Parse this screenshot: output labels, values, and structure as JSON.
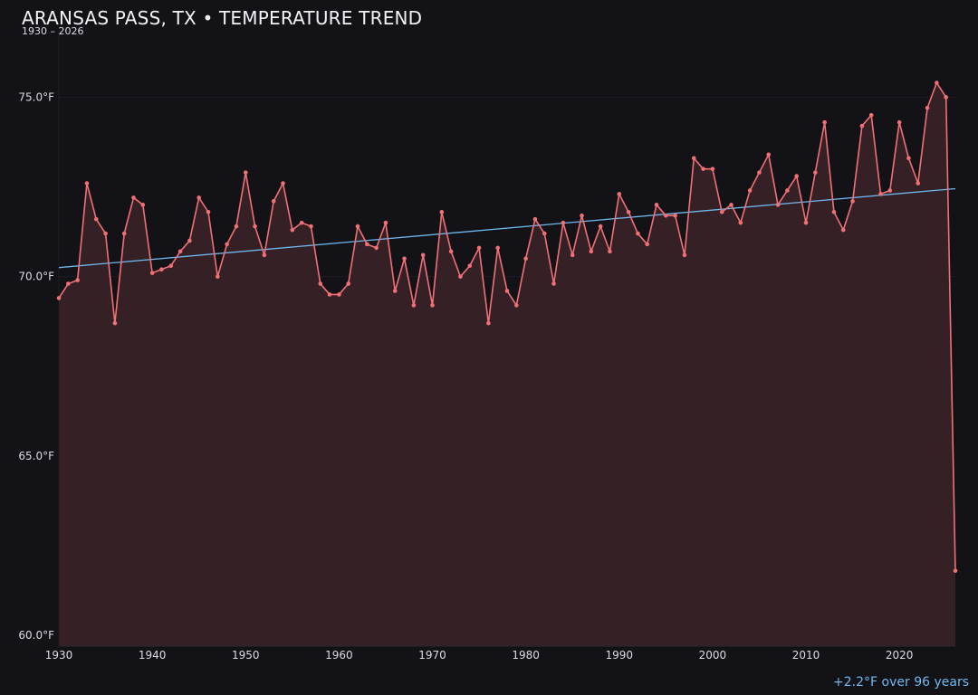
{
  "chart_data": {
    "type": "line",
    "title": "ARANSAS PASS, TX • TEMPERATURE TREND",
    "subtitle": "1930 – 2026",
    "xlabel": "",
    "ylabel": "",
    "xlim": [
      1930,
      2026
    ],
    "ylim": [
      59.7,
      76.8
    ],
    "xticks": [
      1930,
      1940,
      1950,
      1960,
      1970,
      1980,
      1990,
      2000,
      2010,
      2020
    ],
    "yticks": [
      60,
      65,
      70,
      75
    ],
    "ytick_labels": [
      "60.0°F",
      "65.0°F",
      "70.0°F",
      "75.0°F"
    ],
    "grid": "horizontal",
    "colors": {
      "background": "#131217",
      "line": "#f07175",
      "fill": "#352026",
      "trend": "#6fb9ee",
      "text": "#dcdce2"
    },
    "annotation": "+2.2°F over 96 years",
    "trend": {
      "x": [
        1930,
        2026
      ],
      "y": [
        70.25,
        72.45
      ]
    },
    "series": [
      {
        "x": [
          1930,
          1931,
          1932,
          1933,
          1934,
          1935,
          1936,
          1937,
          1938,
          1939,
          1940,
          1941,
          1942,
          1943,
          1944,
          1945,
          1946,
          1947,
          1948,
          1949,
          1950,
          1951,
          1952,
          1953,
          1954,
          1955,
          1956,
          1957,
          1958,
          1959,
          1960,
          1961,
          1962,
          1963,
          1964,
          1965,
          1966,
          1967,
          1968,
          1969,
          1970,
          1971,
          1972,
          1973,
          1974,
          1975,
          1976,
          1977,
          1978,
          1979,
          1980,
          1981,
          1982,
          1983,
          1984,
          1985,
          1986,
          1987,
          1988,
          1989,
          1990,
          1991,
          1992,
          1993,
          1994,
          1995,
          1996,
          1997,
          1998,
          1999,
          2000,
          2001,
          2002,
          2003,
          2004,
          2005,
          2006,
          2007,
          2008,
          2009,
          2010,
          2011,
          2012,
          2013,
          2014,
          2015,
          2016,
          2017,
          2018,
          2019,
          2020,
          2021,
          2022,
          2023,
          2024,
          2025,
          2026
        ],
        "values": [
          69.4,
          69.8,
          69.9,
          72.6,
          71.6,
          71.2,
          68.7,
          71.2,
          72.2,
          72.0,
          70.1,
          70.2,
          70.3,
          70.7,
          71.0,
          72.2,
          71.8,
          70.0,
          70.9,
          71.4,
          72.9,
          71.4,
          70.6,
          72.1,
          72.6,
          71.3,
          71.5,
          71.4,
          69.8,
          69.5,
          69.5,
          69.8,
          71.4,
          70.9,
          70.8,
          71.5,
          69.6,
          70.5,
          69.2,
          70.6,
          69.2,
          71.8,
          70.7,
          70.0,
          70.3,
          70.8,
          68.7,
          70.8,
          69.6,
          69.2,
          70.5,
          71.6,
          71.2,
          69.8,
          71.5,
          70.6,
          71.7,
          70.7,
          71.4,
          70.7,
          72.3,
          71.8,
          71.2,
          70.9,
          72.0,
          71.7,
          71.7,
          70.6,
          73.3,
          73.0,
          73.0,
          71.8,
          72.0,
          71.5,
          72.4,
          72.9,
          73.4,
          72.0,
          72.4,
          72.8,
          71.5,
          72.9,
          74.3,
          71.8,
          71.3,
          72.1,
          74.2,
          74.5,
          72.3,
          72.4,
          74.3,
          73.3,
          72.6,
          74.7,
          75.4,
          75.0,
          61.8
        ]
      }
    ]
  }
}
